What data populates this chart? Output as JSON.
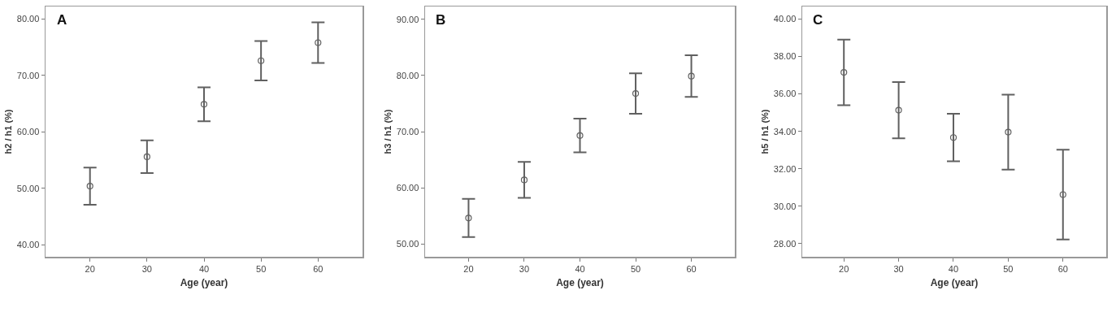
{
  "chart_data": [
    {
      "type": "scatter",
      "annotations": [
        "A"
      ],
      "xlabel": "Age (year)",
      "ylabel": "h2 / h1 (%)",
      "x": [
        20,
        30,
        40,
        50,
        60
      ],
      "values": [
        50.4,
        55.6,
        64.9,
        72.6,
        75.8
      ],
      "errors": [
        3.3,
        2.9,
        3.0,
        3.5,
        3.6
      ],
      "color": "#606060",
      "marker": "circle",
      "grid": false,
      "xlim": [
        12.2,
        67.8
      ],
      "xticks": [
        20,
        30,
        40,
        50,
        60
      ],
      "ylim": [
        37.9,
        82.2
      ],
      "yticks": [
        {
          "value": 40,
          "label": "40.00"
        },
        {
          "value": 50,
          "label": "50.00"
        },
        {
          "value": 60,
          "label": "60.00"
        },
        {
          "value": 70,
          "label": "70.00"
        },
        {
          "value": 80,
          "label": "80.00"
        }
      ]
    },
    {
      "type": "scatter",
      "annotations": [
        "B"
      ],
      "xlabel": "Age (year)",
      "ylabel": "h3 / h1 (%)",
      "x": [
        20,
        30,
        40,
        50,
        60
      ],
      "values": [
        54.6,
        61.4,
        69.3,
        76.8,
        79.9
      ],
      "errors": [
        3.4,
        3.2,
        3.0,
        3.6,
        3.7
      ],
      "color": "#606060",
      "marker": "circle",
      "grid": false,
      "xlim": [
        12.2,
        67.8
      ],
      "xticks": [
        20,
        30,
        40,
        50,
        60
      ],
      "ylim": [
        47.7,
        92.3
      ],
      "yticks": [
        {
          "value": 50,
          "label": "50.00"
        },
        {
          "value": 60,
          "label": "60.00"
        },
        {
          "value": 70,
          "label": "70.00"
        },
        {
          "value": 80,
          "label": "80.00"
        },
        {
          "value": 90,
          "label": "90.00"
        }
      ]
    },
    {
      "type": "scatter",
      "annotations": [
        "C"
      ],
      "xlabel": "Age (year)",
      "ylabel": "h5 / h1 (%)",
      "x": [
        20,
        30,
        40,
        50,
        60
      ],
      "values": [
        37.15,
        35.13,
        33.67,
        33.96,
        30.62
      ],
      "errors": [
        1.75,
        1.5,
        1.27,
        2.0,
        2.4
      ],
      "color": "#606060",
      "marker": "circle",
      "grid": false,
      "xlim": [
        12.4,
        67.9
      ],
      "xticks": [
        20,
        30,
        40,
        50,
        60
      ],
      "ylim": [
        27.3,
        40.67
      ],
      "yticks": [
        {
          "value": 28,
          "label": "28.00"
        },
        {
          "value": 30,
          "label": "30.00"
        },
        {
          "value": 32,
          "label": "32.00"
        },
        {
          "value": 34,
          "label": "34.00"
        },
        {
          "value": 36,
          "label": "36.00"
        },
        {
          "value": 38,
          "label": "38.00"
        },
        {
          "value": 40,
          "label": "40.00"
        }
      ]
    }
  ]
}
